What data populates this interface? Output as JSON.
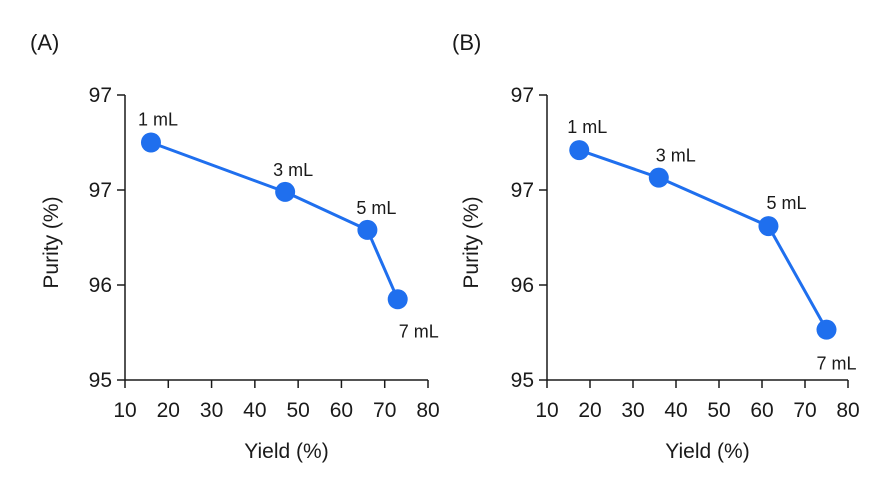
{
  "chart_data": [
    {
      "panel": "(A)",
      "type": "line",
      "xlabel": "Yield (%)",
      "ylabel": "Purity (%)",
      "xlim": [
        10,
        80
      ],
      "ylim": [
        95,
        98
      ],
      "xticks": [
        "10",
        "20",
        "30",
        "40",
        "50",
        "60",
        "70",
        "80"
      ],
      "yticks": [
        "95",
        "96",
        "97",
        "97"
      ],
      "grid": false,
      "color": "#1f6fee",
      "points": [
        {
          "label": "1 mL",
          "x": 16,
          "y": 97.5
        },
        {
          "label": "3 mL",
          "x": 47,
          "y": 96.98
        },
        {
          "label": "5 mL",
          "x": 66,
          "y": 96.58
        },
        {
          "label": "7 mL",
          "x": 73,
          "y": 95.85
        }
      ]
    },
    {
      "panel": "(B)",
      "type": "line",
      "xlabel": "Yield (%)",
      "ylabel": "Purity (%)",
      "xlim": [
        10,
        80
      ],
      "ylim": [
        95,
        98
      ],
      "xticks": [
        "10",
        "20",
        "30",
        "40",
        "50",
        "60",
        "70",
        "80"
      ],
      "yticks": [
        "95",
        "96",
        "97",
        "97"
      ],
      "grid": false,
      "color": "#1f6fee",
      "points": [
        {
          "label": "1 mL",
          "x": 17.5,
          "y": 97.42
        },
        {
          "label": "3 mL",
          "x": 36,
          "y": 97.13
        },
        {
          "label": "5 mL",
          "x": 61.5,
          "y": 96.62
        },
        {
          "label": "7 mL",
          "x": 75,
          "y": 95.53
        }
      ]
    }
  ]
}
